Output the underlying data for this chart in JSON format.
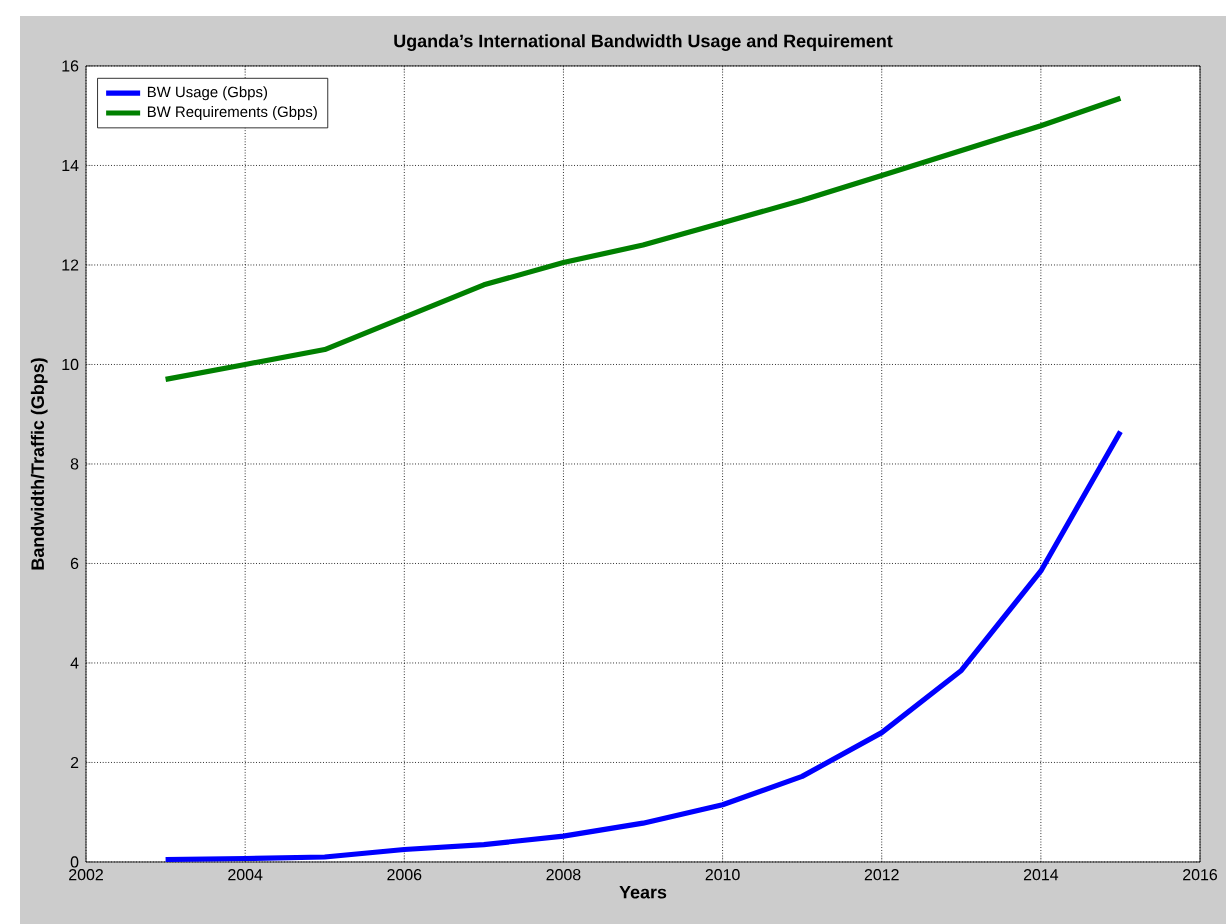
{
  "chart_data": {
    "type": "line",
    "title": "Uganda’s International Bandwidth Usage and Requirement",
    "xlabel": "Years",
    "ylabel": "Bandwidth/Traffic (Gbps)",
    "x": [
      2003,
      2004,
      2005,
      2006,
      2007,
      2008,
      2009,
      2010,
      2011,
      2012,
      2013,
      2014,
      2015
    ],
    "series": [
      {
        "name": "BW Usage (Gbps)",
        "color": "#0000ff",
        "values": [
          0.05,
          0.07,
          0.1,
          0.25,
          0.35,
          0.52,
          0.78,
          1.15,
          1.72,
          2.6,
          3.85,
          5.85,
          8.65
        ]
      },
      {
        "name": "BW Requirements (Gbps)",
        "color": "#008000",
        "values": [
          9.7,
          10.0,
          10.3,
          10.95,
          11.6,
          12.05,
          12.4,
          12.85,
          13.3,
          13.8,
          14.3,
          14.8,
          15.35
        ]
      }
    ],
    "xlim": [
      2002,
      2016
    ],
    "xticks": [
      2002,
      2004,
      2006,
      2008,
      2010,
      2012,
      2014,
      2016
    ],
    "ylim": [
      0,
      16
    ],
    "yticks": [
      0,
      2,
      4,
      6,
      8,
      10,
      12,
      14,
      16
    ],
    "grid": true,
    "legend": "top left",
    "marker": "none",
    "line_style": "solid"
  }
}
